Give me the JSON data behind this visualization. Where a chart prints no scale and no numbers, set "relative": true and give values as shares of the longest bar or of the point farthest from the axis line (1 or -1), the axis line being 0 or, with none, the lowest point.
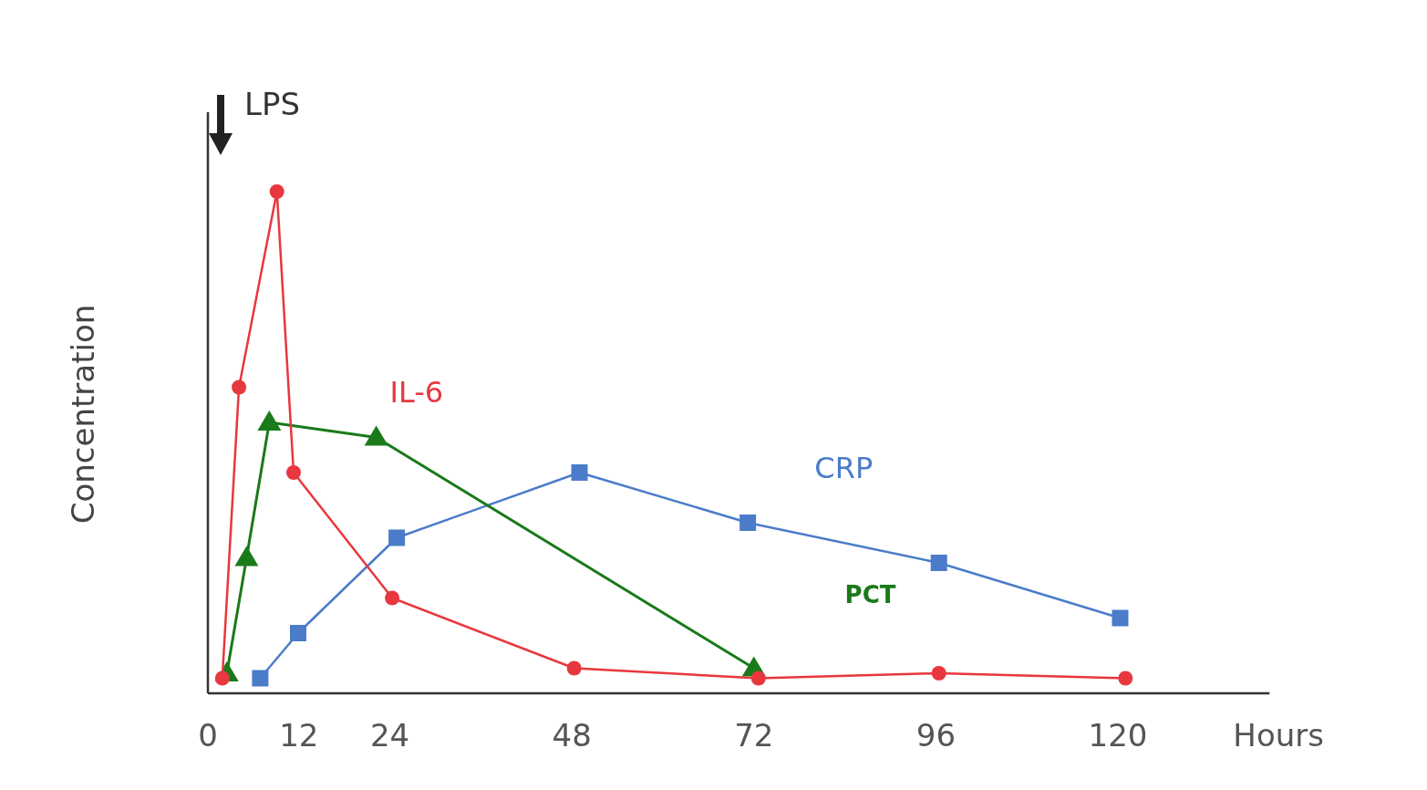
{
  "chart_data": {
    "type": "line",
    "relative": true,
    "xlabel": "Hours",
    "ylabel": "Concentration",
    "xlim": [
      0,
      140
    ],
    "xticks": [
      0,
      12,
      24,
      48,
      72,
      96,
      120
    ],
    "grid": false,
    "legend": false,
    "annotations": [
      "LPS"
    ],
    "series": [
      {
        "name": "IL-6",
        "color": "#e8373e",
        "marker": "circle",
        "x": [
          1.9,
          4.1,
          9.1,
          11.3,
          24.3,
          48.3,
          72.6,
          96.4,
          121
        ],
        "values": [
          0.03,
          0.61,
          1.0,
          0.44,
          0.19,
          0.05,
          0.03,
          0.04,
          0.03
        ]
      },
      {
        "name": "PCT",
        "color": "#1a7a1a",
        "marker": "triangle",
        "x": [
          2.5,
          5.1,
          8.1,
          22.2,
          72
        ],
        "values": [
          0.04,
          0.27,
          0.54,
          0.51,
          0.05
        ]
      },
      {
        "name": "CRP",
        "color": "#4a7cc9",
        "marker": "square",
        "x": [
          6.9,
          11.9,
          24.9,
          49,
          71.2,
          96.4,
          120.3
        ],
        "values": [
          0.03,
          0.12,
          0.31,
          0.44,
          0.34,
          0.26,
          0.15
        ]
      }
    ]
  }
}
